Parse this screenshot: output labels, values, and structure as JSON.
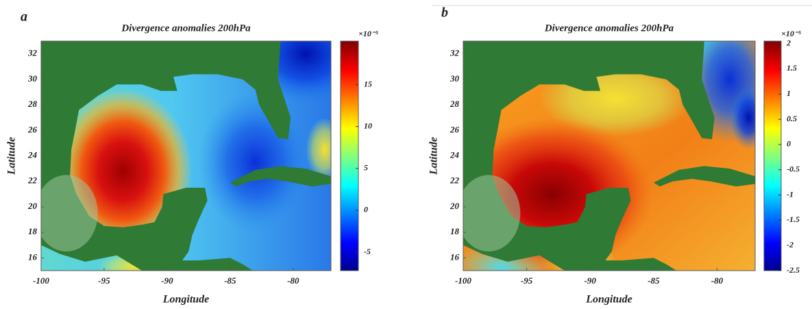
{
  "chart_data": [
    {
      "type": "heatmap",
      "panel": "a",
      "title": "Divergence anomalies 200hPa",
      "x_label": "Longitude",
      "y_label": "Latitude",
      "xlim": [
        -100,
        -77
      ],
      "xticks": [
        -100,
        -95,
        -90,
        -85,
        -80
      ],
      "ylim": [
        15,
        33
      ],
      "yticks": [
        16,
        18,
        20,
        22,
        24,
        26,
        28,
        30,
        32
      ],
      "colorbar_lim": [
        -7.2,
        20.2
      ],
      "colorbar_ticks": [
        -5,
        0,
        5,
        10,
        15
      ],
      "colorbar_label": "×10⁻⁵",
      "colormap": "jet"
    },
    {
      "type": "heatmap",
      "panel": "b",
      "title": "Divergence anomalies 200hPa",
      "x_label": "Longitude",
      "y_label": "Latitude",
      "xlim": [
        -100,
        -77
      ],
      "xticks": [
        -100,
        -95,
        -90,
        -85,
        -80
      ],
      "ylim": [
        15,
        33
      ],
      "yticks": [
        16,
        18,
        20,
        22,
        24,
        26,
        28,
        30,
        32
      ],
      "colorbar_lim": [
        -2.5,
        2.05
      ],
      "colorbar_ticks": [
        2,
        1.5,
        1,
        0.5,
        0,
        -0.5,
        -1,
        -1.5,
        -2,
        -2.5
      ],
      "colorbar_label": "×10⁻⁵",
      "colormap": "jet"
    }
  ]
}
